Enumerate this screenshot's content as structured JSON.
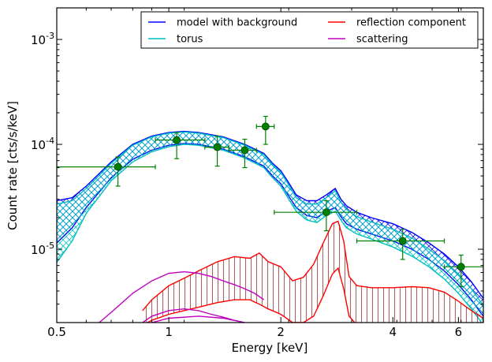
{
  "chart_data": {
    "type": "line",
    "title": "",
    "xlabel": "Energy [keV]",
    "ylabel": "Count rate [cts/s/keV]",
    "xscale": "log",
    "yscale": "log",
    "xlim": [
      0.5,
      7.0
    ],
    "ylim": [
      2e-06,
      0.002
    ],
    "legend_position": "top-right",
    "grid": false,
    "x_ticks": [
      {
        "value": 0.5,
        "label": "0.5"
      },
      {
        "value": 1,
        "label": "1"
      },
      {
        "value": 2,
        "label": "2"
      },
      {
        "value": 4,
        "label": "4"
      },
      {
        "value": 6,
        "label": "6"
      }
    ],
    "y_ticks": [
      {
        "value": 1e-05,
        "base": "10",
        "exp": "-5"
      },
      {
        "value": 0.0001,
        "base": "10",
        "exp": "-4"
      },
      {
        "value": 0.001,
        "base": "10",
        "exp": "-3"
      }
    ],
    "series": [
      {
        "name": "model with background",
        "color": "#0000ff",
        "band": true,
        "x": [
          0.5,
          0.55,
          0.6,
          0.7,
          0.8,
          0.9,
          1.0,
          1.1,
          1.2,
          1.4,
          1.6,
          1.8,
          1.9,
          2.0,
          2.1,
          2.2,
          2.35,
          2.5,
          2.65,
          2.8,
          2.9,
          3.0,
          3.2,
          3.5,
          4.0,
          4.5,
          5.0,
          5.5,
          6.0,
          6.5,
          7.0
        ],
        "lower": [
          1.15e-05,
          1.6e-05,
          2.5e-05,
          4.8e-05,
          7.2e-05,
          8.8e-05,
          9.8e-05,
          0.000102,
          0.0001,
          9e-05,
          7.6e-05,
          6.2e-05,
          5e-05,
          4.2e-05,
          3.2e-05,
          2.5e-05,
          2.1e-05,
          2e-05,
          2.3e-05,
          2.5e-05,
          2.05e-05,
          1.75e-05,
          1.55e-05,
          1.4e-05,
          1.2e-05,
          1e-05,
          8e-06,
          6.2e-06,
          4.6e-06,
          3.3e-06,
          2.3e-06
        ],
        "upper": [
          2.9e-05,
          3.1e-05,
          4e-05,
          6.8e-05,
          0.0001,
          0.00012,
          0.00013,
          0.000133,
          0.00013,
          0.000118,
          0.0001,
          8.2e-05,
          6.6e-05,
          5.6e-05,
          4.3e-05,
          3.3e-05,
          2.9e-05,
          2.9e-05,
          3.3e-05,
          3.8e-05,
          3e-05,
          2.6e-05,
          2.25e-05,
          2e-05,
          1.75e-05,
          1.45e-05,
          1.15e-05,
          9e-06,
          6.8e-06,
          4.9e-06,
          3.4e-06
        ]
      },
      {
        "name": "torus",
        "color": "#00bfbf",
        "band": true,
        "x": [
          0.5,
          0.55,
          0.6,
          0.7,
          0.8,
          0.9,
          1.0,
          1.1,
          1.2,
          1.4,
          1.6,
          1.8,
          1.9,
          2.0,
          2.1,
          2.2,
          2.35,
          2.5,
          2.65,
          2.8,
          2.9,
          3.0,
          3.2,
          3.5,
          4.0,
          4.5,
          5.0,
          5.5,
          6.0,
          6.5,
          7.0
        ],
        "lower": [
          7.5e-06,
          1.2e-05,
          2.2e-05,
          4.5e-05,
          6.8e-05,
          8.5e-05,
          9.5e-05,
          0.0001,
          9.8e-05,
          8.8e-05,
          7.4e-05,
          6e-05,
          4.8e-05,
          4e-05,
          3e-05,
          2.3e-05,
          1.9e-05,
          1.8e-05,
          2.1e-05,
          2.3e-05,
          1.9e-05,
          1.6e-05,
          1.4e-05,
          1.25e-05,
          1.05e-05,
          8.6e-06,
          6.8e-06,
          5.2e-06,
          3.8e-06,
          2.7e-06,
          1.9e-06
        ],
        "upper": [
          2.7e-05,
          2.9e-05,
          3.8e-05,
          6.6e-05,
          9.8e-05,
          0.000118,
          0.000128,
          0.000131,
          0.000128,
          0.000116,
          9.8e-05,
          8e-05,
          6.4e-05,
          5.4e-05,
          4.1e-05,
          3.1e-05,
          2.7e-05,
          2.7e-05,
          3.1e-05,
          3.6e-05,
          2.8e-05,
          2.4e-05,
          2.05e-05,
          1.82e-05,
          1.55e-05,
          1.28e-05,
          1e-05,
          7.8e-06,
          5.8e-06,
          4.2e-06,
          2.9e-06
        ]
      },
      {
        "name": "reflection component",
        "color": "#ff0000",
        "band": true,
        "x": [
          0.85,
          0.9,
          1.0,
          1.1,
          1.2,
          1.35,
          1.5,
          1.65,
          1.75,
          1.85,
          2.0,
          2.15,
          2.3,
          2.45,
          2.6,
          2.75,
          2.85,
          2.95,
          3.05,
          3.2,
          3.5,
          4.0,
          4.5,
          5.0,
          5.5,
          6.0,
          6.5,
          7.0
        ],
        "lower": [
          1.9e-06,
          2.1e-06,
          2.4e-06,
          2.6e-06,
          2.8e-06,
          3.1e-06,
          3.3e-06,
          3.3e-06,
          3e-06,
          2.7e-06,
          2.4e-06,
          2e-06,
          2e-06,
          2.3e-06,
          3.6e-06,
          5.8e-06,
          6.6e-06,
          4.2e-06,
          2.3e-06,
          1.9e-06,
          1.8e-06,
          1.8e-06,
          1.8e-06,
          1.8e-06,
          1.7e-06,
          1.7e-06,
          1.6e-06,
          1.5e-06
        ],
        "upper": [
          2.6e-06,
          3.3e-06,
          4.5e-06,
          5.3e-06,
          6.2e-06,
          7.6e-06,
          8.5e-06,
          8.2e-06,
          9.2e-06,
          7.6e-06,
          6.8e-06,
          5e-06,
          5.4e-06,
          7.2e-06,
          1.15e-05,
          1.75e-05,
          1.85e-05,
          1.2e-05,
          5.5e-06,
          4.5e-06,
          4.3e-06,
          4.3e-06,
          4.4e-06,
          4.3e-06,
          3.9e-06,
          3.2e-06,
          2.6e-06,
          2.2e-06
        ]
      },
      {
        "name": "scattering",
        "color": "#bf00bf",
        "band": false,
        "lines": [
          {
            "x": [
              0.65,
              0.7,
              0.8,
              0.9,
              1.0,
              1.1,
              1.2,
              1.3,
              1.4,
              1.5,
              1.6,
              1.7,
              1.8
            ],
            "y": [
              2e-06,
              2.5e-06,
              3.8e-06,
              5e-06,
              5.9e-06,
              6.1e-06,
              5.9e-06,
              5.5e-06,
              5e-06,
              4.6e-06,
              4.2e-06,
              3.8e-06,
              3.3e-06
            ]
          },
          {
            "x": [
              0.85,
              0.9,
              1.0,
              1.1,
              1.2,
              1.3,
              1.4,
              1.5,
              1.6
            ],
            "y": [
              2e-06,
              2.3e-06,
              2.6e-06,
              2.7e-06,
              2.6e-06,
              2.4e-06,
              2.25e-06,
              2.1e-06,
              2e-06
            ]
          },
          {
            "x": [
              0.9,
              1.0,
              1.2,
              1.4,
              1.6
            ],
            "y": [
              2e-06,
              2.2e-06,
              2.3e-06,
              2.2e-06,
              2e-06
            ]
          }
        ]
      }
    ],
    "data_points": {
      "name": "",
      "marker_color": "#008000",
      "points": [
        {
          "x": 0.73,
          "y": 6.1e-05,
          "xerr": [
            0.5,
            0.92
          ],
          "yerr": [
            4e-05,
            7.6e-05
          ]
        },
        {
          "x": 1.05,
          "y": 0.00011,
          "xerr": [
            0.92,
            1.25
          ],
          "yerr": [
            7.3e-05,
            0.00013
          ]
        },
        {
          "x": 1.35,
          "y": 9.4e-05,
          "xerr": [
            1.25,
            1.45
          ],
          "yerr": [
            6.2e-05,
            0.00012
          ]
        },
        {
          "x": 1.6,
          "y": 8.8e-05,
          "xerr": [
            1.45,
            1.72
          ],
          "yerr": [
            6e-05,
            0.000112
          ]
        },
        {
          "x": 1.82,
          "y": 0.000148,
          "xerr": [
            1.72,
            1.92
          ],
          "yerr": [
            0.0001,
            0.000185
          ]
        },
        {
          "x": 2.65,
          "y": 2.25e-05,
          "xerr": [
            1.92,
            3.2
          ],
          "yerr": [
            1.5e-05,
            2.9e-05
          ]
        },
        {
          "x": 4.25,
          "y": 1.2e-05,
          "xerr": [
            3.2,
            5.5
          ],
          "yerr": [
            8e-06,
            1.55e-05
          ]
        },
        {
          "x": 6.1,
          "y": 6.8e-06,
          "xerr": [
            5.5,
            7.0
          ],
          "yerr": [
            4.4e-06,
            8.8e-06
          ]
        }
      ]
    }
  }
}
